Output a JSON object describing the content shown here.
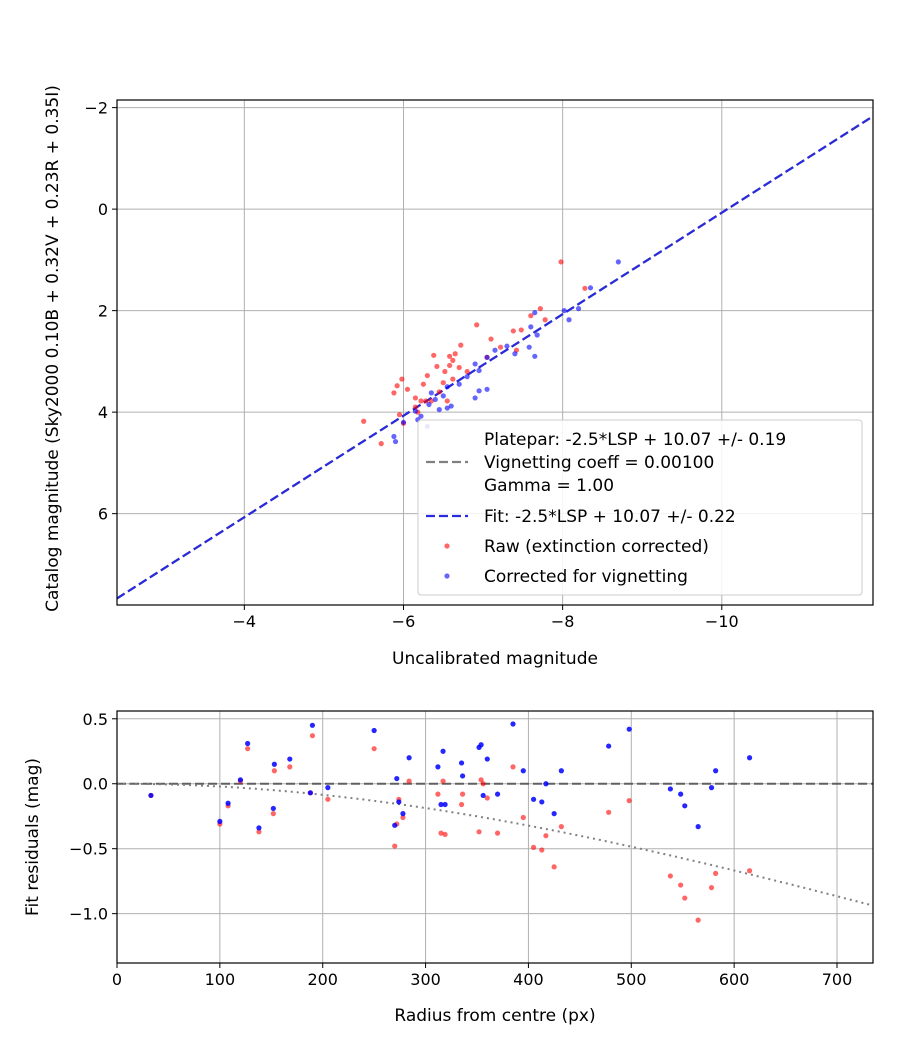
{
  "chart_data": [
    {
      "type": "scatter",
      "id": "calibration",
      "xlabel": "Uncalibrated magnitude",
      "ylabel": "Catalog magnitude (Sky2000 0.10B + 0.32V + 0.23R + 0.35I)",
      "xlim": [
        -2.4,
        -11.9
      ],
      "ylim": [
        7.8,
        -2.15
      ],
      "x_inverted": true,
      "y_inverted": true,
      "xticks": [
        -4,
        -6,
        -8,
        -10
      ],
      "xtick_labels": [
        "−4",
        "−6",
        "−8",
        "−10"
      ],
      "yticks": [
        -2,
        0,
        2,
        4,
        6
      ],
      "ytick_labels": [
        "−2",
        "0",
        "2",
        "4",
        "6"
      ],
      "grid": true,
      "legend_position": "lower-right",
      "legend": [
        {
          "label": "Platepar: -2.5*LSP + 10.07 +/- 0.19",
          "marker": "none"
        },
        {
          "label": "Vignetting coeff = 0.00100",
          "marker": "dashed",
          "color": "#808080"
        },
        {
          "label": "Gamma = 1.00",
          "marker": "none"
        },
        {
          "label": "Fit: -2.5*LSP + 10.07 +/- 0.22",
          "marker": "dashed",
          "color": "#2a2add"
        },
        {
          "label": "Raw (extinction corrected)",
          "marker": "dot",
          "color": "#ff0000"
        },
        {
          "label": "Corrected for vignetting",
          "marker": "dot",
          "color": "#0000ff"
        }
      ],
      "lines": [
        {
          "name": "Platepar",
          "slope": 1,
          "intercept": 10.07,
          "color": "#808080",
          "style": "dashed"
        },
        {
          "name": "Fit",
          "slope": 1,
          "intercept": 10.07,
          "color": "#2a2add",
          "style": "dashed"
        }
      ],
      "series": [
        {
          "name": "Raw (extinction corrected)",
          "color": "#ff0000",
          "points": [
            [
              -7.98,
              1.04
            ],
            [
              -8.28,
              1.56
            ],
            [
              -7.72,
              1.96
            ],
            [
              -7.78,
              2.18
            ],
            [
              -7.6,
              2.1
            ],
            [
              -6.92,
              2.28
            ],
            [
              -7.48,
              2.38
            ],
            [
              -7.38,
              2.4
            ],
            [
              -7.1,
              2.56
            ],
            [
              -7.22,
              2.72
            ],
            [
              -7.42,
              2.78
            ],
            [
              -6.72,
              2.68
            ],
            [
              -6.65,
              2.85
            ],
            [
              -6.58,
              2.9
            ],
            [
              -6.38,
              2.88
            ],
            [
              -6.62,
              2.98
            ],
            [
              -6.58,
              3.08
            ],
            [
              -6.7,
              3.12
            ],
            [
              -6.8,
              3.2
            ],
            [
              -7.05,
              2.92
            ],
            [
              -6.42,
              3.1
            ],
            [
              -6.52,
              3.2
            ],
            [
              -6.3,
              3.28
            ],
            [
              -6.25,
              3.45
            ],
            [
              -6.5,
              3.42
            ],
            [
              -6.62,
              3.35
            ],
            [
              -6.05,
              3.55
            ],
            [
              -5.98,
              3.35
            ],
            [
              -5.92,
              3.48
            ],
            [
              -5.88,
              3.62
            ],
            [
              -6.15,
              3.72
            ],
            [
              -6.45,
              3.6
            ],
            [
              -6.28,
              3.78
            ],
            [
              -6.22,
              3.78
            ],
            [
              -6.55,
              3.78
            ],
            [
              -6.35,
              3.78
            ],
            [
              -6.15,
              3.9
            ],
            [
              -6.18,
              4.0
            ],
            [
              -5.95,
              4.05
            ],
            [
              -5.5,
              4.18
            ],
            [
              -5.72,
              4.62
            ],
            [
              -6.0,
              4.22
            ]
          ]
        },
        {
          "name": "Corrected for vignetting",
          "color": "#0000ff",
          "points": [
            [
              -8.7,
              1.04
            ],
            [
              -8.35,
              1.55
            ],
            [
              -8.2,
              1.96
            ],
            [
              -8.02,
              2.0
            ],
            [
              -7.65,
              2.04
            ],
            [
              -8.08,
              2.18
            ],
            [
              -7.6,
              2.32
            ],
            [
              -7.68,
              2.48
            ],
            [
              -7.58,
              2.72
            ],
            [
              -7.65,
              2.9
            ],
            [
              -7.4,
              2.85
            ],
            [
              -7.3,
              2.7
            ],
            [
              -7.15,
              2.78
            ],
            [
              -7.05,
              2.92
            ],
            [
              -6.9,
              3.05
            ],
            [
              -6.95,
              3.18
            ],
            [
              -6.8,
              3.3
            ],
            [
              -7.05,
              3.55
            ],
            [
              -6.95,
              3.58
            ],
            [
              -6.9,
              3.72
            ],
            [
              -6.7,
              3.45
            ],
            [
              -6.55,
              3.5
            ],
            [
              -6.5,
              3.68
            ],
            [
              -6.6,
              3.88
            ],
            [
              -6.45,
              3.95
            ],
            [
              -6.35,
              3.62
            ],
            [
              -6.32,
              3.85
            ],
            [
              -6.15,
              3.98
            ],
            [
              -6.22,
              4.08
            ],
            [
              -6.18,
              4.15
            ],
            [
              -6.3,
              4.28
            ],
            [
              -6.0,
              4.2
            ],
            [
              -5.88,
              4.48
            ],
            [
              -5.9,
              4.58
            ],
            [
              -6.55,
              3.92
            ],
            [
              -6.4,
              3.75
            ]
          ]
        }
      ]
    },
    {
      "type": "scatter",
      "id": "residuals",
      "xlabel": "Radius from centre (px)",
      "ylabel": "Fit residuals (mag)",
      "xlim": [
        0,
        735
      ],
      "ylim": [
        -1.38,
        0.56
      ],
      "xticks": [
        0,
        100,
        200,
        300,
        400,
        500,
        600,
        700
      ],
      "xtick_labels": [
        "0",
        "100",
        "200",
        "300",
        "400",
        "500",
        "600",
        "700"
      ],
      "yticks": [
        0.5,
        0.0,
        -0.5,
        -1.0
      ],
      "ytick_labels": [
        "0.5",
        "0.0",
        "−0.5",
        "−1.0"
      ],
      "grid": true,
      "lines": [
        {
          "name": "zero",
          "kind": "hline",
          "y": 0,
          "color": "#606060",
          "style": "dashed"
        },
        {
          "name": "vignetting model",
          "kind": "curve",
          "coeff": 0.001,
          "color": "#808080",
          "style": "dotted"
        }
      ],
      "series": [
        {
          "name": "Raw (extinction corrected)",
          "color": "#ff0000",
          "points": [
            [
              33,
              -0.09
            ],
            [
              100,
              -0.31
            ],
            [
              108,
              -0.17
            ],
            [
              120,
              0.02
            ],
            [
              127,
              0.27
            ],
            [
              138,
              -0.37
            ],
            [
              152,
              -0.23
            ],
            [
              153,
              0.1
            ],
            [
              168,
              0.13
            ],
            [
              188,
              -0.07
            ],
            [
              190,
              0.37
            ],
            [
              205,
              -0.12
            ],
            [
              250,
              0.27
            ],
            [
              270,
              -0.48
            ],
            [
              272,
              -0.31
            ],
            [
              274,
              -0.12
            ],
            [
              278,
              -0.26
            ],
            [
              284,
              0.02
            ],
            [
              312,
              -0.08
            ],
            [
              315,
              -0.38
            ],
            [
              317,
              0.02
            ],
            [
              319,
              -0.39
            ],
            [
              335,
              -0.16
            ],
            [
              336,
              -0.08
            ],
            [
              352,
              -0.37
            ],
            [
              354,
              0.03
            ],
            [
              356,
              0.0
            ],
            [
              360,
              -0.11
            ],
            [
              370,
              -0.38
            ],
            [
              385,
              0.13
            ],
            [
              395,
              -0.26
            ],
            [
              405,
              -0.49
            ],
            [
              413,
              -0.51
            ],
            [
              417,
              -0.4
            ],
            [
              425,
              -0.64
            ],
            [
              432,
              -0.33
            ],
            [
              478,
              -0.22
            ],
            [
              498,
              -0.13
            ],
            [
              538,
              -0.71
            ],
            [
              548,
              -0.78
            ],
            [
              552,
              -0.88
            ],
            [
              565,
              -1.05
            ],
            [
              578,
              -0.8
            ],
            [
              582,
              -0.69
            ],
            [
              615,
              -0.67
            ]
          ]
        },
        {
          "name": "Corrected for vignetting",
          "color": "#0000ff",
          "points": [
            [
              33,
              -0.09
            ],
            [
              100,
              -0.29
            ],
            [
              108,
              -0.15
            ],
            [
              120,
              0.03
            ],
            [
              127,
              0.31
            ],
            [
              138,
              -0.34
            ],
            [
              152,
              -0.19
            ],
            [
              153,
              0.15
            ],
            [
              168,
              0.19
            ],
            [
              188,
              -0.07
            ],
            [
              190,
              0.45
            ],
            [
              205,
              -0.03
            ],
            [
              250,
              0.41
            ],
            [
              270,
              -0.32
            ],
            [
              272,
              0.04
            ],
            [
              274,
              -0.14
            ],
            [
              278,
              -0.23
            ],
            [
              284,
              0.2
            ],
            [
              312,
              0.13
            ],
            [
              315,
              -0.16
            ],
            [
              317,
              0.25
            ],
            [
              319,
              -0.16
            ],
            [
              335,
              0.16
            ],
            [
              336,
              0.06
            ],
            [
              352,
              0.28
            ],
            [
              354,
              0.3
            ],
            [
              356,
              -0.09
            ],
            [
              360,
              0.19
            ],
            [
              370,
              -0.08
            ],
            [
              385,
              0.46
            ],
            [
              395,
              0.1
            ],
            [
              405,
              -0.12
            ],
            [
              413,
              -0.14
            ],
            [
              417,
              0.0
            ],
            [
              425,
              -0.23
            ],
            [
              432,
              0.1
            ],
            [
              478,
              0.29
            ],
            [
              498,
              0.42
            ],
            [
              538,
              -0.04
            ],
            [
              548,
              -0.08
            ],
            [
              552,
              -0.17
            ],
            [
              565,
              -0.33
            ],
            [
              578,
              -0.03
            ],
            [
              582,
              0.1
            ],
            [
              615,
              0.2
            ]
          ]
        }
      ]
    }
  ]
}
